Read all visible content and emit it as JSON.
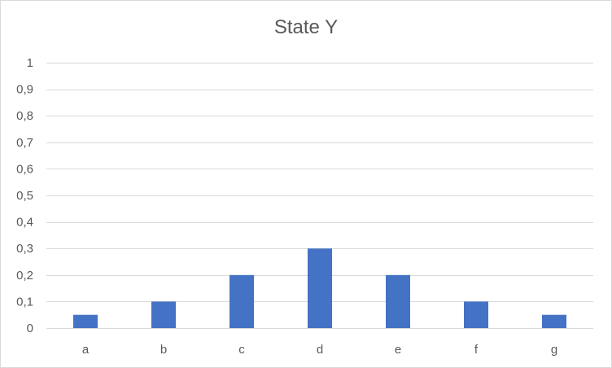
{
  "chart_data": {
    "type": "bar",
    "title": "State Y",
    "xlabel": "",
    "ylabel": "",
    "categories": [
      "a",
      "b",
      "c",
      "d",
      "e",
      "f",
      "g"
    ],
    "values": [
      0.05,
      0.1,
      0.2,
      0.3,
      0.2,
      0.1,
      0.05
    ],
    "ylim": [
      0,
      1
    ],
    "yticks": [
      0,
      0.1,
      0.2,
      0.3,
      0.4,
      0.5,
      0.6,
      0.7,
      0.8,
      0.9,
      1
    ],
    "ytick_labels": [
      "0",
      "0,1",
      "0,2",
      "0,3",
      "0,4",
      "0,5",
      "0,6",
      "0,7",
      "0,8",
      "0,9",
      "1"
    ],
    "grid": true,
    "legend": "none",
    "colors": {
      "bar": "#4472c4",
      "gridline": "#d9d9d9",
      "text": "#595959"
    }
  }
}
